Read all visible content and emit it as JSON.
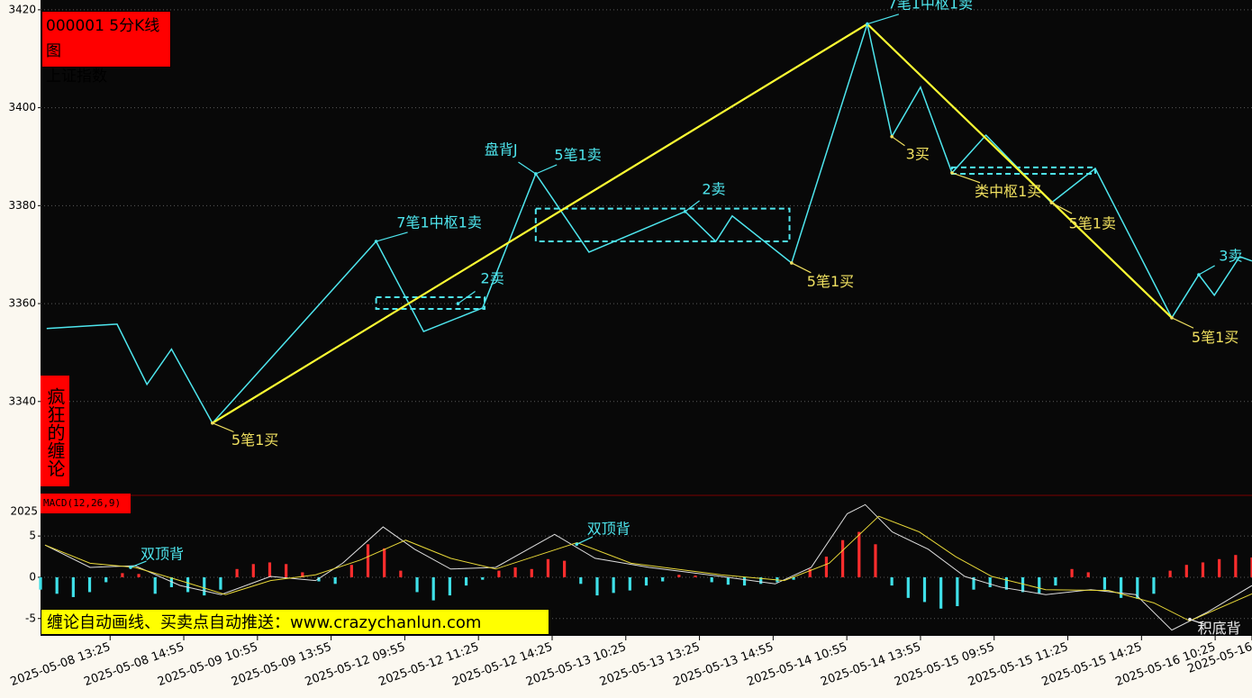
{
  "header": {
    "code_title": "000001 5分K线图",
    "name": "上证指数",
    "side_label": "疯狂的缠论",
    "banner": "缠论自动画线、买卖点自动推送：www.crazychanlun.com"
  },
  "chart_data": [
    {
      "type": "line",
      "xlim": [
        0,
        296
      ],
      "ylim": [
        3321.2,
        3422.0
      ],
      "yticks": [
        3340,
        3360,
        3380,
        3400,
        3420
      ],
      "grid": true,
      "xticks": [
        {
          "value": 17,
          "label": "2025-05-08 13:25"
        },
        {
          "value": 35,
          "label": "2025-05-08 14:55"
        },
        {
          "value": 53,
          "label": "2025-05-09 10:55"
        },
        {
          "value": 71,
          "label": "2025-05-09 13:55"
        },
        {
          "value": 89,
          "label": "2025-05-12 09:55"
        },
        {
          "value": 107,
          "label": "2025-05-12 11:25"
        },
        {
          "value": 125,
          "label": "2025-05-12 14:25"
        },
        {
          "value": 143,
          "label": "2025-05-13 10:25"
        },
        {
          "value": 161,
          "label": "2025-05-13 13:25"
        },
        {
          "value": 179,
          "label": "2025-05-13 14:55"
        },
        {
          "value": 197,
          "label": "2025-05-14 10:55"
        },
        {
          "value": 215,
          "label": "2025-05-14 13:55"
        },
        {
          "value": 233,
          "label": "2025-05-15 09:55"
        },
        {
          "value": 251,
          "label": "2025-05-15 11:25"
        },
        {
          "value": 269,
          "label": "2025-05-15 14:25"
        },
        {
          "value": 287,
          "label": "2025-05-16 10:25"
        },
        {
          "value": 296,
          "label": "2025-05-16"
        }
      ],
      "series": [
        {
          "color": "#4ee6ee",
          "width": 1.5,
          "x": [
            1.5,
            18.7,
            26,
            32,
            42,
            82,
            93.6,
            108,
            121,
            134,
            157.5,
            165,
            169,
            183.5,
            202,
            208,
            215,
            222.7,
            231,
            247,
            257.7,
            276.4,
            283,
            286.8,
            293,
            296
          ],
          "values": [
            3354.9,
            3355.8,
            3343.5,
            3350.7,
            3335.6,
            3372.7,
            3354.3,
            3359.1,
            3386.5,
            3370.5,
            3378.8,
            3372.7,
            3377.9,
            3368.3,
            3417.1,
            3394.1,
            3404.2,
            3386.7,
            3394.4,
            3380.6,
            3387.6,
            3357.1,
            3365.9,
            3361.7,
            3369.6,
            3368.7
          ]
        },
        {
          "color": "#ffff33",
          "width": 2.2,
          "x": [
            42,
            202,
            276.4
          ],
          "values": [
            3335.6,
            3417.1,
            3357.1
          ]
        }
      ],
      "zones": [
        {
          "color": "#4ee6ee",
          "x": [
            82,
            108.5
          ],
          "y": [
            3358.9,
            3361.3
          ]
        },
        {
          "color": "#4ee6ee",
          "x": [
            121,
            183
          ],
          "y": [
            3372.7,
            3379.4
          ]
        },
        {
          "color": "#4ee6ee",
          "x": [
            222.7,
            257.7
          ],
          "y": [
            3386.5,
            3387.8
          ]
        }
      ],
      "annotations": [
        {
          "text": "5笔1买",
          "color": "#f0e060",
          "x": 52.4,
          "y": 3332.0,
          "point_x": 42,
          "point_y": 3335.6
        },
        {
          "text": "7笔1中枢1卖",
          "color": "#4ee6ee",
          "x": 97.4,
          "y": 3376.4,
          "point_x": 82,
          "point_y": 3372.7
        },
        {
          "text": "2卖",
          "color": "#4ee6ee",
          "x": 110.4,
          "y": 3365.0,
          "point_x": 102,
          "point_y": 3360.0
        },
        {
          "text": "盘背J",
          "color": "#4ee6ee",
          "x": 112.5,
          "y": 3391.3,
          "point_x": 121,
          "point_y": 3386.5
        },
        {
          "text": "5笔1卖",
          "color": "#4ee6ee",
          "x": 131.3,
          "y": 3390.2,
          "point_x": 121,
          "point_y": 3386.5
        },
        {
          "text": "2卖",
          "color": "#4ee6ee",
          "x": 164.5,
          "y": 3383.2,
          "point_x": 157.5,
          "point_y": 3378.8
        },
        {
          "text": "5笔1买",
          "color": "#f0e060",
          "x": 193,
          "y": 3364.3,
          "point_x": 183.5,
          "point_y": 3368.3
        },
        {
          "text": "7笔1中枢1卖",
          "color": "#4ee6ee",
          "x": 217.4,
          "y": 3421.1,
          "point_x": 202,
          "point_y": 3417.1
        },
        {
          "text": "3买",
          "color": "#f0e060",
          "x": 214.3,
          "y": 3390.4,
          "point_x": 208,
          "point_y": 3394.1
        },
        {
          "text": "类中枢1买",
          "color": "#f0e060",
          "x": 236.4,
          "y": 3382.7,
          "point_x": 222.7,
          "point_y": 3386.7
        },
        {
          "text": "5笔1卖",
          "color": "#f0e060",
          "x": 257,
          "y": 3376.2,
          "point_x": 247,
          "point_y": 3380.6
        },
        {
          "text": "5笔1买",
          "color": "#f0e060",
          "x": 287,
          "y": 3352.9,
          "point_x": 276.4,
          "point_y": 3357.1
        },
        {
          "text": "3卖",
          "color": "#4ee6ee",
          "x": 290.8,
          "y": 3369.6,
          "point_x": 283,
          "point_y": 3365.9
        }
      ]
    },
    {
      "type": "macd",
      "title": "MACD(12,26,9)",
      "corner_label": "2025",
      "xlim": [
        0,
        296
      ],
      "ylim": [
        -7.1,
        9.6
      ],
      "yticks": [
        -5,
        0,
        5
      ],
      "grid": true,
      "up_color": "#ff2d2d",
      "down_color": "#3fe0e8",
      "histogram": {
        "x": [
          0,
          4,
          8,
          12,
          16,
          20,
          24,
          28,
          32,
          36,
          40,
          44,
          48,
          52,
          56,
          60,
          64,
          68,
          72,
          76,
          80,
          84,
          88,
          92,
          96,
          100,
          104,
          108,
          112,
          116,
          120,
          124,
          128,
          132,
          136,
          140,
          144,
          148,
          152,
          156,
          160,
          164,
          168,
          172,
          176,
          180,
          184,
          188,
          192,
          196,
          200,
          204,
          208,
          212,
          216,
          220,
          224,
          228,
          232,
          236,
          240,
          244,
          248,
          252,
          256,
          260,
          264,
          268,
          272,
          276,
          280,
          284,
          288,
          292,
          296
        ],
        "values": [
          -1.5,
          -2.0,
          -2.4,
          -1.8,
          -0.6,
          0.5,
          0.4,
          -2.0,
          -1.2,
          -1.8,
          -2.2,
          -1.5,
          1.0,
          1.6,
          1.8,
          1.6,
          0.6,
          -0.5,
          -0.8,
          1.5,
          4.0,
          3.5,
          0.8,
          -1.8,
          -2.8,
          -2.2,
          -1.0,
          -0.3,
          0.8,
          1.2,
          1.0,
          2.2,
          2.0,
          -0.8,
          -2.2,
          -1.9,
          -1.6,
          -1.0,
          -0.5,
          0.3,
          0.2,
          -0.6,
          -0.9,
          -1.0,
          -0.8,
          -0.6,
          -0.3,
          1.0,
          2.5,
          4.5,
          5.5,
          4.0,
          -1.0,
          -2.5,
          -3.0,
          -3.8,
          -3.5,
          -1.5,
          -1.2,
          -1.5,
          -1.8,
          -2.0,
          -1.0,
          1.0,
          0.6,
          -1.5,
          -2.5,
          -2.6,
          -2.0,
          0.8,
          1.5,
          1.8,
          2.2,
          2.7,
          2.4
        ]
      },
      "series": [
        {
          "color": "#dddddd",
          "x": [
            1.1,
            12.1,
            23.1,
            34.1,
            44.1,
            56.2,
            67.2,
            73.8,
            83.7,
            91.4,
            100.2,
            111.2,
            125.6,
            135.5,
            148.7,
            166.3,
            179.5,
            188.3,
            197.1,
            201.5,
            208.1,
            216.9,
            225.8,
            234.6,
            245.6,
            256.6,
            267.6,
            276.4,
            285.2,
            296
          ],
          "values": [
            3.9,
            1.2,
            1.4,
            -1.0,
            -2.1,
            0.1,
            -0.4,
            1.7,
            6.1,
            3.4,
            1.0,
            1.2,
            5.2,
            2.3,
            1.2,
            0.1,
            -0.8,
            1.2,
            7.7,
            8.8,
            5.5,
            3.4,
            0.1,
            -1.2,
            -2.1,
            -1.5,
            -2.1,
            -6.4,
            -4.2,
            -1.0
          ]
        },
        {
          "color": "#e8d838",
          "x": [
            1.1,
            12.1,
            23.1,
            34.1,
            45.2,
            56.2,
            67.2,
            78.2,
            89.2,
            100.2,
            111.2,
            131.1,
            144.3,
            166.3,
            181.7,
            192.7,
            204.8,
            214.7,
            223.6,
            232.4,
            245.6,
            261.0,
            272.0,
            280.8,
            296
          ],
          "values": [
            3.9,
            1.7,
            1.2,
            -0.4,
            -2.1,
            -0.4,
            0.3,
            2.1,
            4.5,
            2.3,
            1.0,
            4.2,
            1.7,
            0.3,
            -0.4,
            1.7,
            7.4,
            5.5,
            2.5,
            0.1,
            -1.5,
            -1.6,
            -3.1,
            -5.3,
            -2.0
          ]
        }
      ],
      "annotations": [
        {
          "text": "双顶背",
          "color": "#4ee6ee",
          "x": 29.7,
          "y": 2.7,
          "point_x": 22,
          "point_y": 1.2
        },
        {
          "text": "双顶背",
          "color": "#4ee6ee",
          "x": 138.8,
          "y": 5.8,
          "point_x": 131,
          "point_y": 4.0
        },
        {
          "text": "积底背",
          "color": "#eeeeee",
          "x": 288,
          "y": -6.3,
          "point_x": 280.8,
          "point_y": -5.1
        }
      ]
    }
  ]
}
